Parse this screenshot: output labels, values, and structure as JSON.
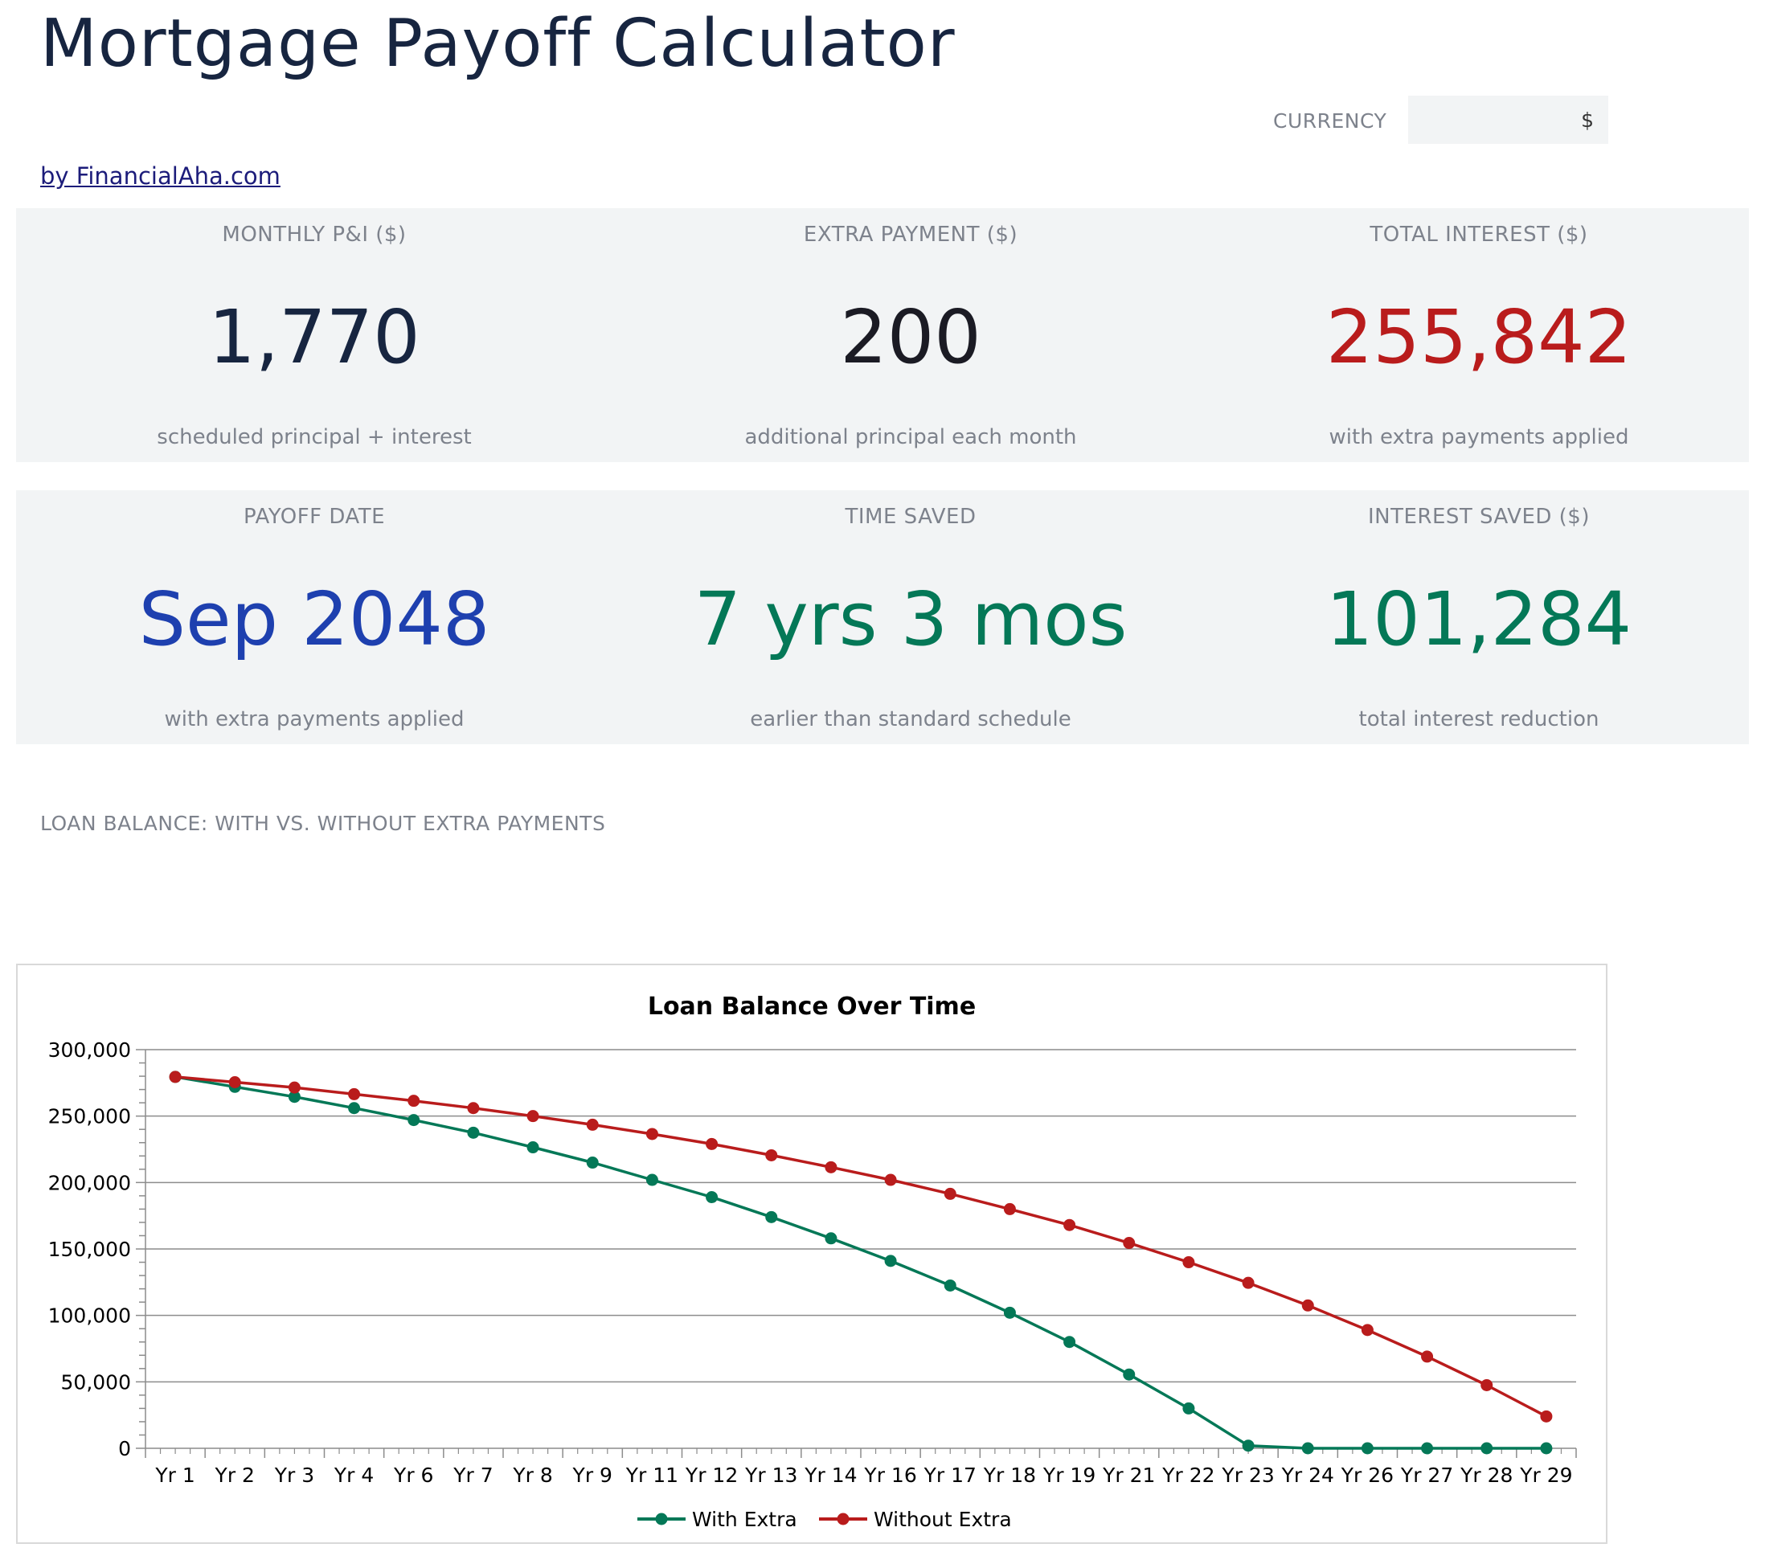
{
  "header": {
    "title": "Mortgage Payoff Calculator",
    "byline": "by FinancialAha.com",
    "currency_label": "CURRENCY",
    "currency_value": "$"
  },
  "colors": {
    "title": "#172540",
    "panel_bg": "#f2f4f5",
    "muted_text": "#7d828c",
    "red": "#b91c1c",
    "green": "#047857",
    "blue": "#1e40af",
    "link": "#1c1c7a"
  },
  "metrics": {
    "monthly": {
      "label": "MONTHLY P&I ($)",
      "value": "1,770",
      "sub": "scheduled principal + interest"
    },
    "extra": {
      "label": "EXTRA PAYMENT ($)",
      "value": "200",
      "sub": "additional principal each month"
    },
    "total_interest": {
      "label": "TOTAL INTEREST ($)",
      "value": "255,842",
      "sub": "with extra payments applied"
    },
    "payoff": {
      "label": "PAYOFF DATE",
      "value": "Sep 2048",
      "sub": "with extra payments applied"
    },
    "time_saved": {
      "label": "TIME SAVED",
      "value": "7 yrs 3 mos",
      "sub": "earlier than standard schedule"
    },
    "interest_saved": {
      "label": "INTEREST SAVED ($)",
      "value": "101,284",
      "sub": "total interest reduction"
    }
  },
  "chart_section": {
    "heading": "LOAN BALANCE: WITH VS. WITHOUT EXTRA PAYMENTS"
  },
  "chart_data": {
    "type": "line",
    "title": "Loan Balance Over Time",
    "xlabel": "",
    "ylabel": "",
    "categories": [
      "Yr 1",
      "Yr 2",
      "Yr 3",
      "Yr 4",
      "Yr 6",
      "Yr 7",
      "Yr 8",
      "Yr 9",
      "Yr 11",
      "Yr 12",
      "Yr 13",
      "Yr 14",
      "Yr 16",
      "Yr 17",
      "Yr 18",
      "Yr 19",
      "Yr 21",
      "Yr 22",
      "Yr 23",
      "Yr 24",
      "Yr 26",
      "Yr 27",
      "Yr 28",
      "Yr 29"
    ],
    "ylim": [
      0,
      300000
    ],
    "yticks": [
      0,
      50000,
      100000,
      150000,
      200000,
      250000,
      300000
    ],
    "ytick_labels": [
      "0",
      "50,000",
      "100,000",
      "150,000",
      "200,000",
      "250,000",
      "300,000"
    ],
    "grid": true,
    "legend_position": "bottom",
    "series": [
      {
        "name": "With Extra",
        "color": "#047857",
        "values": [
          279500,
          272000,
          264500,
          256000,
          247000,
          237500,
          226500,
          215000,
          202000,
          189000,
          174000,
          158000,
          141000,
          122500,
          102000,
          80000,
          55500,
          30000,
          2000,
          0,
          0,
          0,
          0,
          0
        ]
      },
      {
        "name": "Without Extra",
        "color": "#b91c1c",
        "values": [
          279500,
          275500,
          271500,
          266500,
          261500,
          256000,
          250000,
          243500,
          236500,
          229000,
          220500,
          211500,
          202000,
          191500,
          180000,
          168000,
          154500,
          140000,
          124500,
          107500,
          89000,
          69000,
          47500,
          24000
        ]
      }
    ]
  }
}
